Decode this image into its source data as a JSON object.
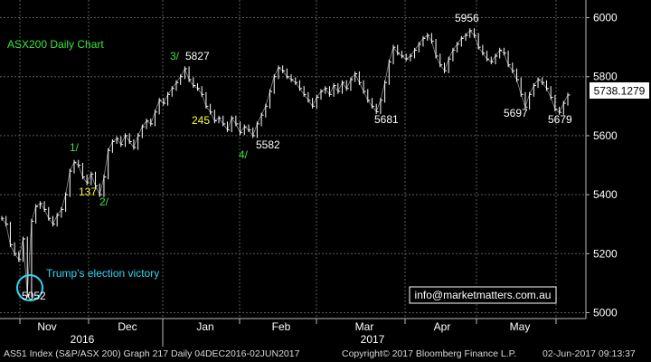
{
  "chart_data": {
    "type": "line",
    "title": "ASX200 Daily Chart",
    "ylim": [
      4980,
      6060
    ],
    "y_ticks": [
      5000,
      5200,
      5400,
      5600,
      5800,
      6000
    ],
    "y_tick_labels": [
      "5000",
      "5200",
      "5400",
      "5600",
      "5800",
      "6000"
    ],
    "x_month_labels": [
      "Nov",
      "Dec",
      "Jan",
      "Feb",
      "Mar",
      "Apr",
      "May"
    ],
    "x_year_labels": [
      "2016",
      "2017"
    ],
    "grid": true,
    "legend": "none",
    "last_price": "5738.1279",
    "series": [
      {
        "values": [
          5320,
          5300,
          5230,
          5200,
          5180,
          5250,
          5060,
          5310,
          5360,
          5370,
          5350,
          5320,
          5300,
          5330,
          5350,
          5400,
          5480,
          5510,
          5500,
          5460,
          5440,
          5470,
          5430,
          5400,
          5460,
          5550,
          5580,
          5590,
          5570,
          5600,
          5580,
          5560,
          5600,
          5630,
          5650,
          5640,
          5680,
          5720,
          5710,
          5740,
          5760,
          5780,
          5800,
          5827,
          5790,
          5770,
          5760,
          5740,
          5700,
          5680,
          5650,
          5660,
          5640,
          5620,
          5660,
          5640,
          5610,
          5630,
          5620,
          5600,
          5640,
          5670,
          5700,
          5750,
          5800,
          5830,
          5820,
          5800,
          5790,
          5780,
          5760,
          5740,
          5720,
          5700,
          5730,
          5750,
          5760,
          5740,
          5770,
          5750,
          5780,
          5760,
          5790,
          5810,
          5780,
          5750,
          5720,
          5700,
          5681,
          5720,
          5780,
          5850,
          5900,
          5880,
          5870,
          5860,
          5870,
          5890,
          5910,
          5930,
          5940,
          5920,
          5870,
          5840,
          5820,
          5860,
          5890,
          5910,
          5930,
          5940,
          5956,
          5940,
          5900,
          5880,
          5860,
          5850,
          5870,
          5890,
          5880,
          5840,
          5820,
          5790,
          5740,
          5697,
          5740,
          5770,
          5790,
          5780,
          5760,
          5730,
          5690,
          5679,
          5710,
          5738
        ]
      }
    ],
    "annotations": [
      {
        "text": "5827",
        "color": "white"
      },
      {
        "text": "3/",
        "color": "green"
      },
      {
        "text": "245",
        "color": "yellow"
      },
      {
        "text": "4/",
        "color": "green"
      },
      {
        "text": "5582",
        "color": "white"
      },
      {
        "text": "1/",
        "color": "green"
      },
      {
        "text": "137",
        "color": "yellow"
      },
      {
        "text": "2/",
        "color": "green"
      },
      {
        "text": "Trump's election victory",
        "color": "cyan"
      },
      {
        "text": "5052",
        "color": "white"
      },
      {
        "text": "5681",
        "color": "white"
      },
      {
        "text": "5956",
        "color": "white"
      },
      {
        "text": "5697",
        "color": "white"
      },
      {
        "text": "5679",
        "color": "white"
      },
      {
        "text": "info@marketmatters.com.au",
        "color": "white"
      }
    ]
  },
  "footer": {
    "left": "AS51 Index (S&P/ASX 200) Graph 217  Daily 04DEC2016-02JUN2017",
    "middle": "Copyright© 2017 Bloomberg Finance L.P.",
    "right": "02-Jun-2017 09:13:37"
  },
  "colors": {
    "background": "#000000",
    "grid": "#5a5a5a",
    "line": "#ffffff",
    "annotation_green": "#39e639",
    "annotation_yellow": "#ffff33",
    "annotation_cyan": "#33d6f2",
    "axis_text": "#ffffff"
  }
}
